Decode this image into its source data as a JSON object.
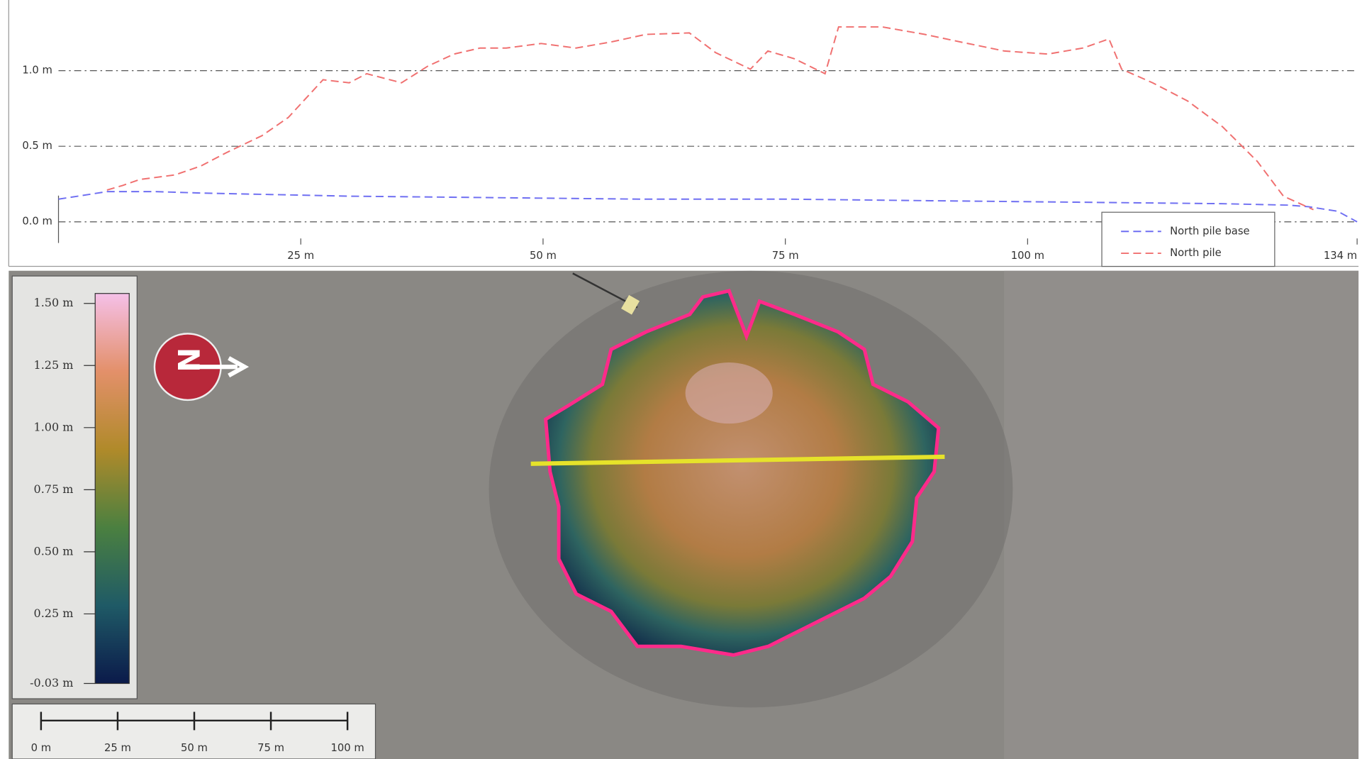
{
  "chart_data": {
    "type": "line",
    "xlim": [
      0,
      134
    ],
    "xticks": [
      {
        "value": 25,
        "label": "25 m"
      },
      {
        "value": 50,
        "label": "50 m"
      },
      {
        "value": 75,
        "label": "75 m"
      },
      {
        "value": 100,
        "label": "100 m"
      },
      {
        "value": 134,
        "label": "134 m"
      }
    ],
    "ylim": [
      -0.14,
      1.41
    ],
    "yticks": [
      {
        "value": 0,
        "label": "0.0 m"
      },
      {
        "value": 0.5,
        "label": "0.5 m"
      },
      {
        "value": 1,
        "label": "1.0 m"
      }
    ],
    "grid": true,
    "legend": "lower right",
    "series": [
      {
        "name": "North pile base",
        "color": "#6f6ff2",
        "x": [
          0,
          2,
          5,
          10,
          15,
          30,
          45,
          60,
          75,
          90,
          105,
          120,
          127,
          129,
          132,
          134
        ],
        "values": [
          0.15,
          0.17,
          0.2,
          0.2,
          0.19,
          0.17,
          0.16,
          0.15,
          0.15,
          0.14,
          0.13,
          0.12,
          0.11,
          0.1,
          0.07,
          0.0
        ]
      },
      {
        "name": "North pile",
        "color": "#f07070",
        "x": [
          5,
          6.6,
          8.4,
          12,
          14.7,
          17.4,
          21,
          23.7,
          27.3,
          30,
          31.8,
          35.4,
          38.1,
          40.8,
          43.5,
          46.2,
          49.8,
          53.4,
          57,
          60.6,
          65.1,
          67.8,
          71.4,
          73.2,
          75.9,
          79.1,
          80.5,
          85,
          89.4,
          93.1,
          97.6,
          102.1,
          105.7,
          108.4,
          109.7,
          112.9,
          116.5,
          120.1,
          123.7,
          126.4,
          129.5
        ],
        "values": [
          0.21,
          0.24,
          0.28,
          0.31,
          0.37,
          0.46,
          0.57,
          0.69,
          0.94,
          0.92,
          0.98,
          0.92,
          1.03,
          1.11,
          1.15,
          1.15,
          1.18,
          1.15,
          1.19,
          1.24,
          1.25,
          1.12,
          1.01,
          1.13,
          1.08,
          0.98,
          1.29,
          1.29,
          1.24,
          1.19,
          1.13,
          1.11,
          1.15,
          1.21,
          1.01,
          0.92,
          0.8,
          0.63,
          0.4,
          0.17,
          0.08
        ]
      }
    ]
  },
  "map": {
    "colorbar": {
      "lim": [
        -0.03,
        1.54
      ],
      "ticks": [
        {
          "value": 1.5,
          "label": "1.50 m"
        },
        {
          "value": 1.25,
          "label": "1.25 m"
        },
        {
          "value": 1,
          "label": "1.00 m"
        },
        {
          "value": 0.75,
          "label": "0.75 m"
        },
        {
          "value": 0.5,
          "label": "0.50 m"
        },
        {
          "value": 0.25,
          "label": "0.25 m"
        },
        {
          "value": -0.03,
          "label": "-0.03 m"
        }
      ]
    },
    "scale_bar": {
      "lim": [
        0,
        100
      ],
      "ticks": [
        {
          "value": 0,
          "label": "0 m"
        },
        {
          "value": 25,
          "label": "25 m"
        },
        {
          "value": 50,
          "label": "50 m"
        },
        {
          "value": 75,
          "label": "75 m"
        },
        {
          "value": 100,
          "label": "100 m"
        }
      ]
    },
    "north_arrow": "N"
  }
}
